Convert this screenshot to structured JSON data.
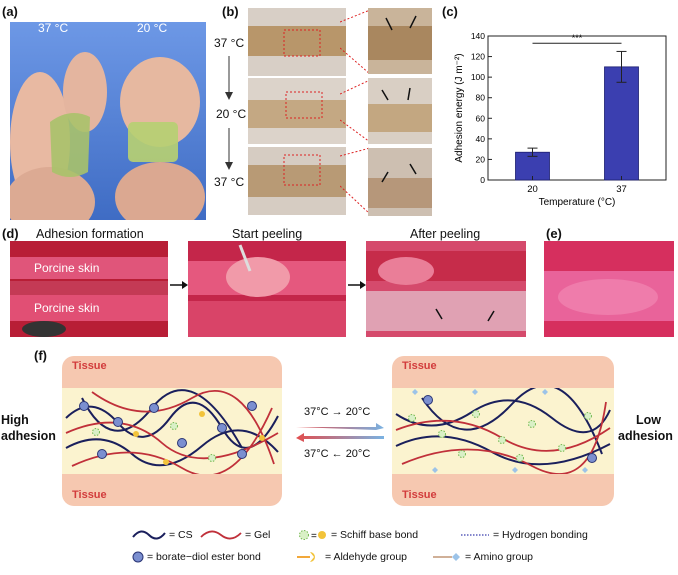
{
  "panel_a": {
    "label": "(a)",
    "temp_left": "37 °C",
    "temp_right": "20 °C"
  },
  "panel_b": {
    "label": "(b)",
    "temps": [
      "37 °C",
      "20 °C",
      "37 °C"
    ]
  },
  "panel_c": {
    "label": "(c)"
  },
  "chart_data": {
    "type": "bar",
    "categories": [
      "20",
      "37"
    ],
    "values": [
      27,
      110
    ],
    "errors": [
      4,
      15
    ],
    "xlabel": "Temperature (°C)",
    "ylabel": "Adhesion energy (J m⁻²)",
    "ylim": [
      0,
      140
    ],
    "yticks": [
      "0",
      "20",
      "40",
      "60",
      "80",
      "100",
      "120",
      "140"
    ],
    "significance": "***",
    "bar_color": "#3b3fb0"
  },
  "panel_d": {
    "label": "(d)",
    "titles": [
      "Adhesion formation",
      "Start peeling",
      "After peeling"
    ],
    "skin_top": "Porcine skin",
    "skin_bottom": "Porcine skin"
  },
  "panel_e": {
    "label": "(e)"
  },
  "panel_f": {
    "label": "(f)",
    "tissue": "Tissue",
    "high": [
      "High",
      "adhesion"
    ],
    "low": [
      "Low",
      "adhesion"
    ],
    "arrow_top": "37°C → 20°C",
    "arrow_bottom": "37°C ← 20°C"
  },
  "legend": {
    "cs": "= CS",
    "gel": "= Gel",
    "schiff": "= Schiff base bond",
    "hbond": "= Hydrogen bonding",
    "borate": "= borate−diol ester bond",
    "aldehyde": "= Aldehyde group",
    "amino": "= Amino group"
  }
}
